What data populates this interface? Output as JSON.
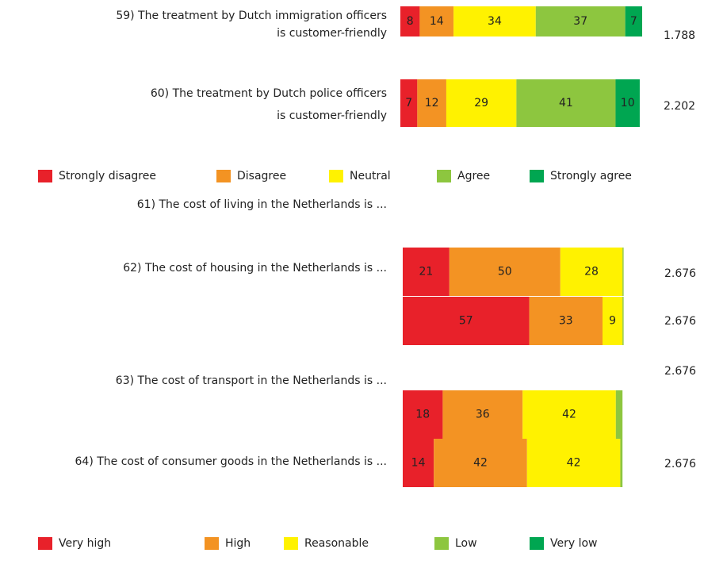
{
  "chart_data": [
    {
      "type": "bar",
      "stacked": true,
      "orientation": "horizontal",
      "categories": [
        [
          "59) The treatment by Dutch immigration officers",
          "is customer-friendly"
        ],
        [
          "60) The treatment by Dutch police officers",
          "is customer-friendly"
        ]
      ],
      "series": [
        {
          "name": "Strongly disagree",
          "color": "#e8212a",
          "values": [
            8,
            7
          ]
        },
        {
          "name": "Disagree",
          "color": "#f39323",
          "values": [
            14,
            12
          ]
        },
        {
          "name": "Neutral",
          "color": "#fff200",
          "values": [
            34,
            29
          ]
        },
        {
          "name": "Agree",
          "color": "#8dc63f",
          "values": [
            37,
            41
          ]
        },
        {
          "name": "Strongly agree",
          "color": "#00a651",
          "values": [
            7,
            10
          ]
        }
      ],
      "n_labels": [
        "1.788",
        "2.202"
      ],
      "xlim": [
        0,
        100
      ],
      "legend": "bottom"
    },
    {
      "type": "bar",
      "stacked": true,
      "orientation": "horizontal",
      "categories": [
        [
          "61) The cost of living in the Netherlands is ..."
        ],
        [
          "62) The cost of housing in the Netherlands is ..."
        ],
        [
          "63)  The cost of transport in the Netherlands is ..."
        ],
        [
          "64) The cost of consumer goods in the Netherlands is ..."
        ]
      ],
      "series": [
        {
          "name": "Very high",
          "color": "#e8212a",
          "values": [
            21,
            57,
            18,
            14
          ]
        },
        {
          "name": "High",
          "color": "#f39323",
          "values": [
            50,
            33,
            36,
            42
          ]
        },
        {
          "name": "Reasonable",
          "color": "#fff200",
          "values": [
            28,
            9,
            42,
            42
          ]
        },
        {
          "name": "Low",
          "color": "#8dc63f",
          "values": [
            0.5,
            0.5,
            3,
            1
          ]
        },
        {
          "name": "Very low",
          "color": "#00a651",
          "values": [
            0,
            0,
            0,
            0
          ]
        }
      ],
      "n_labels": [
        "2.676",
        "2.676",
        "2.676",
        "2.676"
      ],
      "xlim": [
        0,
        100
      ],
      "legend": "bottom"
    }
  ]
}
